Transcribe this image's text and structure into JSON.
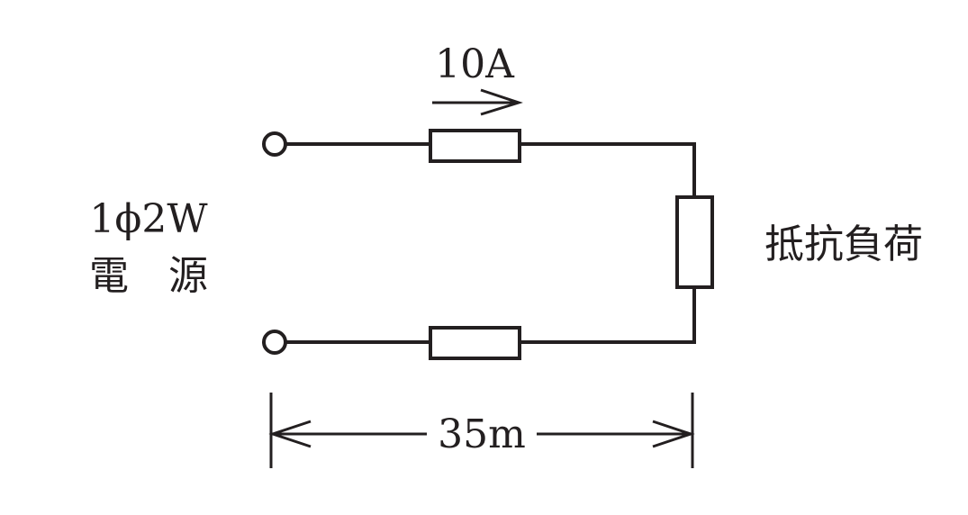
{
  "diagram": {
    "current_label": "10A",
    "source_label_line1": "1ϕ2W",
    "source_label_line2": "電　源",
    "load_label": "抵抗負荷",
    "distance_label": "35m"
  },
  "colors": {
    "ink": "#231f20",
    "background": "#ffffff"
  }
}
